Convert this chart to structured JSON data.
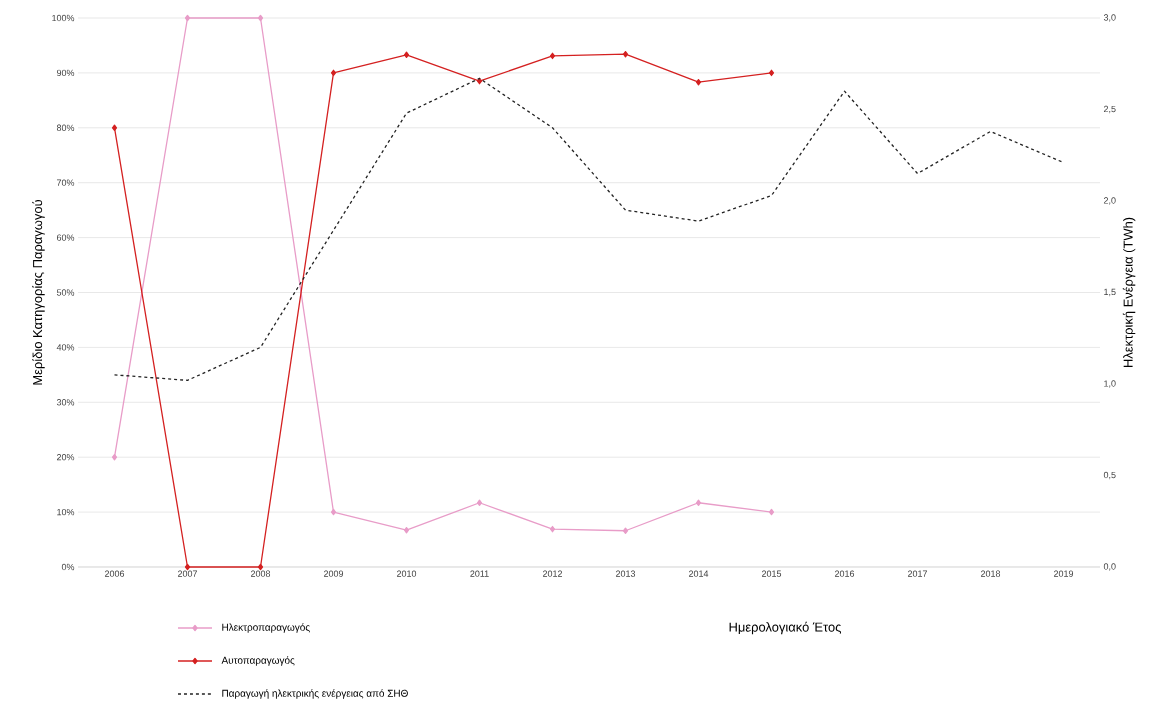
{
  "chart_data": {
    "type": "line",
    "xlabel": "Ημερολογιακό Έτος",
    "ylabel": "Μερίδιο Κατηγορίας Παραγωγού",
    "y2label": "Ηλεκτρική Ενέργεια (TWh)",
    "categories": [
      "2006",
      "2007",
      "2008",
      "2009",
      "2010",
      "2011",
      "2012",
      "2013",
      "2014",
      "2015",
      "2016",
      "2017",
      "2018",
      "2019"
    ],
    "series": [
      {
        "name": "Ηλεκτροπαραγωγός",
        "color": "#e89cc8",
        "marker": "diamond",
        "line_style": "solid",
        "values": [
          20,
          100,
          100,
          10,
          6.7,
          11.7,
          6.9,
          6.6,
          11.7,
          10,
          null,
          null,
          null,
          null
        ]
      },
      {
        "name": "Αυτοπαραγωγός",
        "color": "#d42020",
        "marker": "diamond",
        "line_style": "solid",
        "values": [
          80,
          0,
          0,
          90,
          93.3,
          88.5,
          93.1,
          93.4,
          88.3,
          90,
          null,
          null,
          null,
          null
        ]
      },
      {
        "name": "Παραγωγή ηλεκτρικής ενέργειας από ΣΗΘ",
        "color": "#222222",
        "marker": "none",
        "line_style": "dashed",
        "axis": "y2",
        "values": [
          1.05,
          1.02,
          1.2,
          1.84,
          2.48,
          2.67,
          2.4,
          1.95,
          1.89,
          2.03,
          2.6,
          2.15,
          2.38,
          2.21
        ]
      }
    ],
    "ylim": [
      0,
      100
    ],
    "yticks": [
      {
        "value": 0,
        "label": "0%"
      },
      {
        "value": 10,
        "label": "10%"
      },
      {
        "value": 20,
        "label": "20%"
      },
      {
        "value": 30,
        "label": "30%"
      },
      {
        "value": 40,
        "label": "40%"
      },
      {
        "value": 50,
        "label": "50%"
      },
      {
        "value": 60,
        "label": "60%"
      },
      {
        "value": 70,
        "label": "70%"
      },
      {
        "value": 80,
        "label": "80%"
      },
      {
        "value": 90,
        "label": "90%"
      },
      {
        "value": 100,
        "label": "100%"
      }
    ],
    "y2lim": [
      0,
      3
    ],
    "y2ticks": [
      {
        "value": 0,
        "label": "0,0"
      },
      {
        "value": 0.5,
        "label": "0,5"
      },
      {
        "value": 1,
        "label": "1,0"
      },
      {
        "value": 1.5,
        "label": "1,5"
      },
      {
        "value": 2,
        "label": "2,0"
      },
      {
        "value": 2.5,
        "label": "2,5"
      },
      {
        "value": 3,
        "label": "3,0"
      }
    ],
    "grid": "y",
    "legend": "bottom left"
  }
}
